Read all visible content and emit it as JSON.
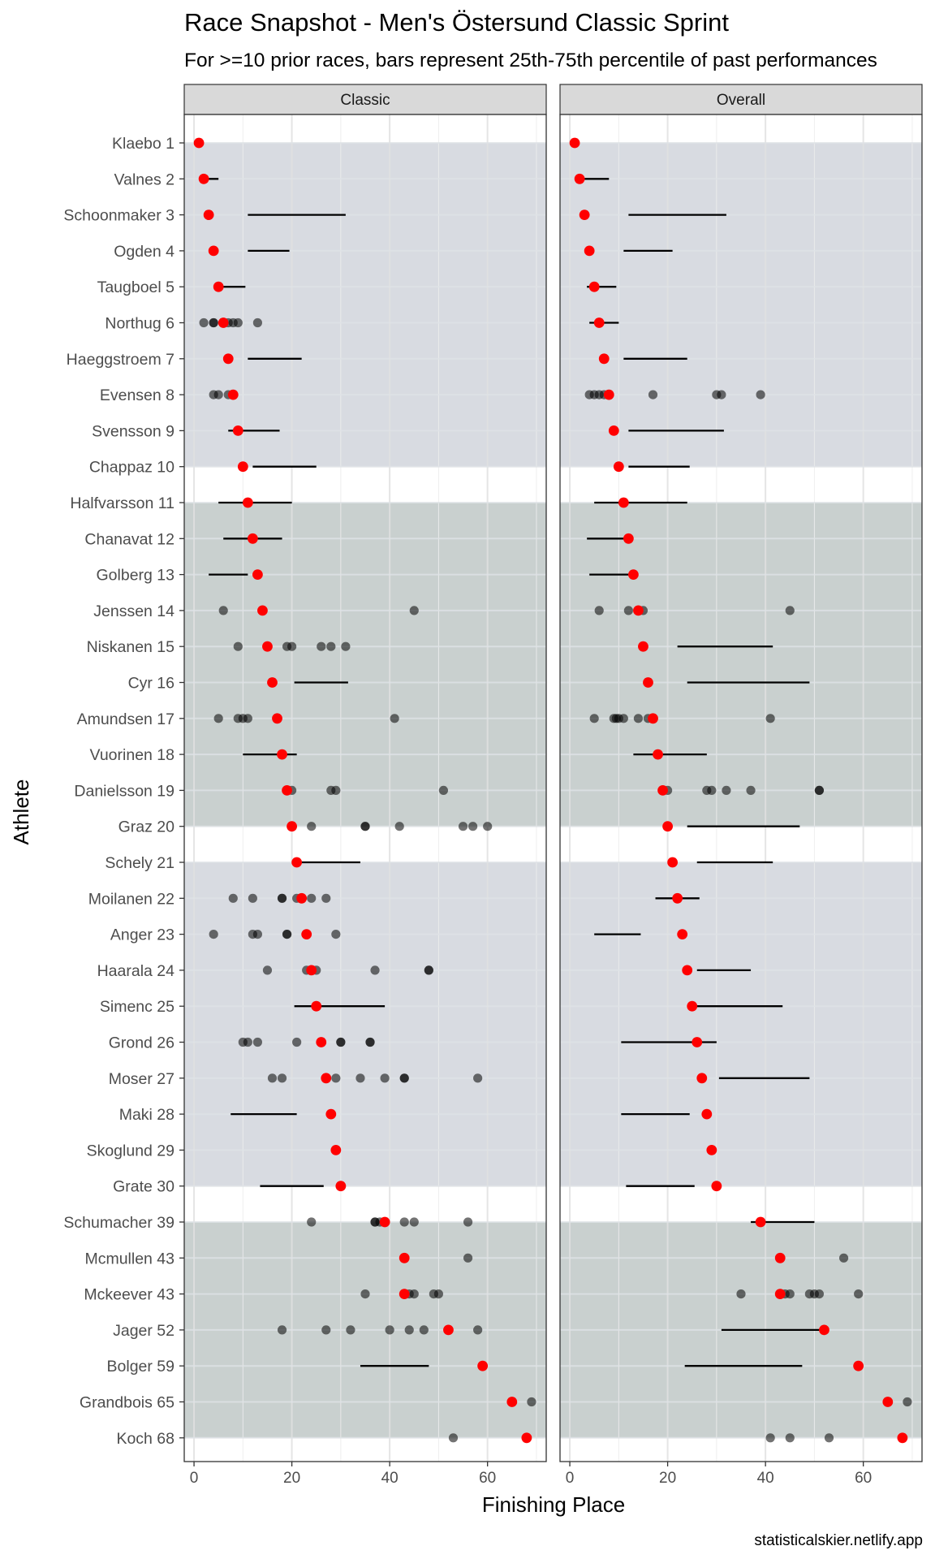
{
  "chart_data": {
    "type": "scatter",
    "title": "Race Snapshot -  Men's Östersund Classic Sprint",
    "subtitle": "For >=10 prior races, bars represent 25th-75th percentile of past performances",
    "xlabel": "Finishing Place",
    "ylabel": "Athlete",
    "caption": "statisticalskier.netlify.app",
    "facets": [
      "Classic",
      "Overall"
    ],
    "xlim": [
      -2,
      72
    ],
    "xticks": [
      0,
      20,
      40,
      60
    ],
    "grid": true,
    "colors": {
      "current": "#ff0000",
      "past": "#000000",
      "band_a": "#d8dbe1",
      "band_b": "#c9d0cf",
      "panel_bg": "#ffffff",
      "strip_bg": "#d9d9d9",
      "grid": "#e5e5e5"
    },
    "bands": [
      {
        "from": "Klaebo 1",
        "to": "Chappaz 10",
        "color": "#d8dbe1"
      },
      {
        "from": "Halfvarsson 11",
        "to": "Graz 20",
        "color": "#c9d0cf"
      },
      {
        "from": "Schely 21",
        "to": "Grate 30",
        "color": "#d8dbe1"
      },
      {
        "from": "Schumacher 39",
        "to": "Koch 68",
        "color": "#c9d0cf"
      }
    ],
    "athletes": [
      {
        "name": "Klaebo 1",
        "place": 1,
        "classic": {
          "points": []
        },
        "overall": {
          "points": []
        }
      },
      {
        "name": "Valnes 2",
        "place": 2,
        "classic": {
          "bar": [
            1,
            5
          ]
        },
        "overall": {
          "bar": [
            1,
            8
          ]
        }
      },
      {
        "name": "Schoonmaker 3",
        "place": 3,
        "classic": {
          "bar": [
            11,
            31
          ]
        },
        "overall": {
          "bar": [
            12,
            32
          ]
        }
      },
      {
        "name": "Ogden 4",
        "place": 4,
        "classic": {
          "bar": [
            11,
            19.5
          ]
        },
        "overall": {
          "bar": [
            11,
            21
          ]
        }
      },
      {
        "name": "Taugboel 5",
        "place": 5,
        "classic": {
          "bar": [
            4,
            10.5
          ]
        },
        "overall": {
          "bar": [
            3.5,
            9.5
          ]
        }
      },
      {
        "name": "Northug 6",
        "place": 6,
        "classic": {
          "points": [
            2,
            4,
            4,
            6,
            7,
            8,
            9,
            13
          ]
        },
        "overall": {
          "bar": [
            4,
            10
          ]
        }
      },
      {
        "name": "Haeggstroem 7",
        "place": 7,
        "classic": {
          "bar": [
            11,
            22
          ]
        },
        "overall": {
          "bar": [
            11,
            24
          ]
        }
      },
      {
        "name": "Evensen 8",
        "place": 8,
        "classic": {
          "points": [
            4,
            5,
            7,
            8
          ]
        },
        "overall": {
          "points": [
            4,
            5,
            6,
            7,
            17,
            30,
            31,
            39
          ]
        }
      },
      {
        "name": "Svensson 9",
        "place": 9,
        "classic": {
          "bar": [
            7,
            17.5
          ]
        },
        "overall": {
          "bar": [
            12,
            31.5
          ]
        }
      },
      {
        "name": "Chappaz 10",
        "place": 10,
        "classic": {
          "bar": [
            12,
            25
          ]
        },
        "overall": {
          "bar": [
            12,
            24.5
          ]
        }
      },
      {
        "name": "Halfvarsson 11",
        "place": 11,
        "classic": {
          "bar": [
            5,
            20
          ]
        },
        "overall": {
          "bar": [
            5,
            24
          ]
        }
      },
      {
        "name": "Chanavat 12",
        "place": 12,
        "classic": {
          "bar": [
            6,
            18
          ]
        },
        "overall": {
          "bar": [
            3.5,
            13
          ]
        }
      },
      {
        "name": "Golberg 13",
        "place": 13,
        "classic": {
          "bar": [
            3,
            11
          ]
        },
        "overall": {
          "bar": [
            4,
            12
          ]
        }
      },
      {
        "name": "Jenssen 14",
        "place": 14,
        "classic": {
          "points": [
            6,
            45
          ]
        },
        "overall": {
          "points": [
            6,
            12,
            14,
            15,
            45
          ]
        }
      },
      {
        "name": "Niskanen 15",
        "place": 15,
        "classic": {
          "points": [
            9,
            19,
            20,
            26,
            28,
            31
          ]
        },
        "overall": {
          "bar": [
            22,
            41.5
          ]
        }
      },
      {
        "name": "Cyr 16",
        "place": 16,
        "classic": {
          "bar": [
            20.5,
            31.5
          ]
        },
        "overall": {
          "bar": [
            24,
            49
          ]
        }
      },
      {
        "name": "Amundsen 17",
        "place": 17,
        "classic": {
          "points": [
            5,
            9,
            10,
            11,
            41
          ]
        },
        "overall": {
          "points": [
            5,
            9,
            9.5,
            10,
            11,
            14,
            16,
            41
          ]
        }
      },
      {
        "name": "Vuorinen 18",
        "place": 18,
        "classic": {
          "bar": [
            10,
            21
          ]
        },
        "overall": {
          "bar": [
            13,
            28
          ]
        }
      },
      {
        "name": "Danielsson 19",
        "place": 19,
        "classic": {
          "points": [
            20,
            28,
            29,
            51
          ]
        },
        "overall": {
          "points": [
            20,
            28,
            29,
            32,
            37,
            51,
            51
          ]
        }
      },
      {
        "name": "Graz 20",
        "place": 20,
        "classic": {
          "points": [
            24,
            35,
            35,
            42,
            55,
            57,
            60
          ]
        },
        "overall": {
          "bar": [
            24,
            47
          ]
        }
      },
      {
        "name": "Schely 21",
        "place": 21,
        "classic": {
          "bar": [
            21,
            34
          ]
        },
        "overall": {
          "bar": [
            26,
            41.5
          ]
        }
      },
      {
        "name": "Moilanen 22",
        "place": 22,
        "classic": {
          "points": [
            8,
            12,
            18,
            18,
            21,
            22,
            24,
            27
          ]
        },
        "overall": {
          "bar": [
            17.5,
            26.5
          ]
        }
      },
      {
        "name": "Anger 23",
        "place": 23,
        "classic": {
          "points": [
            4,
            12,
            13,
            19,
            19,
            29
          ]
        },
        "overall": {
          "bar": [
            5,
            14.5
          ]
        }
      },
      {
        "name": "Haarala 24",
        "place": 24,
        "classic": {
          "points": [
            15,
            23,
            25,
            37,
            48,
            48
          ]
        },
        "overall": {
          "bar": [
            26,
            37
          ]
        }
      },
      {
        "name": "Simenc 25",
        "place": 25,
        "classic": {
          "bar": [
            20.5,
            39
          ]
        },
        "overall": {
          "bar": [
            24.5,
            43.5
          ]
        }
      },
      {
        "name": "Grond 26",
        "place": 26,
        "classic": {
          "points": [
            10,
            11,
            13,
            21,
            30,
            30,
            36,
            36
          ]
        },
        "overall": {
          "bar": [
            10.5,
            30
          ]
        }
      },
      {
        "name": "Moser 27",
        "place": 27,
        "classic": {
          "points": [
            16,
            18,
            29,
            34,
            39,
            43,
            43,
            58
          ]
        },
        "overall": {
          "bar": [
            30.5,
            49
          ]
        }
      },
      {
        "name": "Maki 28",
        "place": 28,
        "classic": {
          "bar": [
            7.5,
            21
          ]
        },
        "overall": {
          "bar": [
            10.5,
            24.5
          ]
        }
      },
      {
        "name": "Skoglund 29",
        "place": 29,
        "classic": {
          "points": []
        },
        "overall": {
          "points": []
        }
      },
      {
        "name": "Grate 30",
        "place": 30,
        "classic": {
          "bar": [
            13.5,
            26.5
          ]
        },
        "overall": {
          "bar": [
            11.5,
            25.5
          ]
        }
      },
      {
        "name": "Schumacher 39",
        "place": 39,
        "classic": {
          "points": [
            24,
            37,
            37,
            38,
            43,
            45,
            56
          ]
        },
        "overall": {
          "bar": [
            37,
            50
          ]
        }
      },
      {
        "name": "Mcmullen 43",
        "place": 43,
        "classic": {
          "points": [
            56
          ]
        },
        "overall": {
          "points": [
            56
          ]
        }
      },
      {
        "name": "Mckeever 43",
        "place": 43,
        "classic": {
          "points": [
            35,
            44,
            45,
            49,
            50
          ]
        },
        "overall": {
          "points": [
            35,
            44,
            45,
            49,
            50,
            51,
            59
          ]
        }
      },
      {
        "name": "Jager 52",
        "place": 52,
        "classic": {
          "points": [
            18,
            27,
            32,
            40,
            44,
            47,
            58
          ]
        },
        "overall": {
          "bar": [
            31,
            51
          ]
        }
      },
      {
        "name": "Bolger 59",
        "place": 59,
        "classic": {
          "bar": [
            34,
            48
          ]
        },
        "overall": {
          "bar": [
            23.5,
            47.5
          ]
        }
      },
      {
        "name": "Grandbois 65",
        "place": 65,
        "classic": {
          "points": [
            69
          ]
        },
        "overall": {
          "points": [
            69
          ]
        }
      },
      {
        "name": "Koch 68",
        "place": 68,
        "classic": {
          "points": [
            53
          ]
        },
        "overall": {
          "points": [
            41,
            45,
            53
          ]
        }
      }
    ]
  }
}
